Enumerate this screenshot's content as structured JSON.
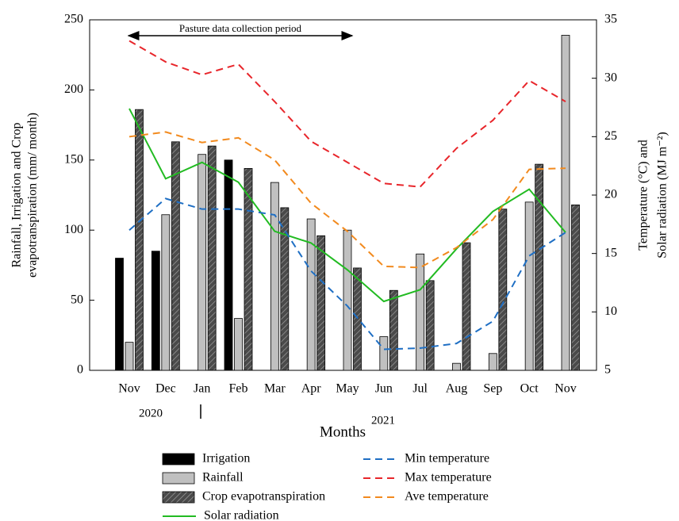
{
  "chart_data": {
    "type": "bar_line",
    "categories": [
      "Nov",
      "Dec",
      "Jan",
      "Feb",
      "Mar",
      "Apr",
      "May",
      "Jun",
      "Jul",
      "Aug",
      "Sep",
      "Oct",
      "Nov"
    ],
    "year_labels": [
      "2020",
      "2021"
    ],
    "x_label": "Months",
    "y_label": [
      "Rainfall, Irrigation and Crop",
      "evapotranspiration (mm/ month)"
    ],
    "y2_label": [
      "Temperature (°C) and",
      "Solar radiation (MJ m⁻²)"
    ],
    "annotation": "Pasture data collection period",
    "ylim": [
      0,
      250
    ],
    "yticks": [
      0,
      50,
      100,
      150,
      200,
      250
    ],
    "y2lim": [
      5,
      35
    ],
    "y2ticks": [
      5,
      10,
      15,
      20,
      25,
      30,
      35
    ],
    "series": [
      {
        "name": "Irrigation",
        "kind": "bar",
        "color": "#000000",
        "values": [
          80,
          85,
          null,
          150,
          null,
          null,
          null,
          null,
          null,
          null,
          null,
          null,
          null
        ]
      },
      {
        "name": "Rainfall",
        "kind": "bar",
        "color": "#c0c0c0",
        "values": [
          20,
          111,
          154,
          37,
          134,
          108,
          100,
          24,
          83,
          5,
          12,
          120,
          239
        ]
      },
      {
        "name": "Crop evapotranspiration",
        "kind": "bar",
        "color": "#4a4a4a",
        "hatch": true,
        "values": [
          186,
          163,
          160,
          144,
          116,
          96,
          73,
          57,
          64,
          91,
          115,
          147,
          118
        ]
      },
      {
        "name": "Solar radiation",
        "kind": "line",
        "axis": "y2",
        "color": "#22bb22",
        "dash": false,
        "values": [
          27.4,
          21.4,
          22.8,
          21.1,
          16.9,
          15.9,
          13.6,
          10.9,
          11.9,
          15.4,
          18.6,
          20.5,
          16.8
        ]
      },
      {
        "name": "Min temperature",
        "kind": "line",
        "axis": "y2",
        "color": "#1f6fc4",
        "dash": true,
        "values": [
          17,
          19.7,
          18.8,
          18.8,
          18.3,
          13.5,
          10.5,
          6.8,
          6.9,
          7.3,
          9.2,
          14.8,
          16.8
        ]
      },
      {
        "name": "Max temperature",
        "kind": "line",
        "axis": "y2",
        "color": "#e8262b",
        "dash": true,
        "values": [
          33.2,
          31.4,
          30.3,
          31.2,
          28,
          24.6,
          22.8,
          21,
          20.7,
          24,
          26.4,
          29.8,
          28
        ]
      },
      {
        "name": "Ave temperature",
        "kind": "line",
        "axis": "y2",
        "color": "#f28a1e",
        "dash": true,
        "values": [
          25,
          25.4,
          24.5,
          24.9,
          23,
          19.3,
          16.9,
          13.9,
          13.8,
          15.5,
          17.9,
          22.2,
          22.3
        ]
      }
    ]
  }
}
